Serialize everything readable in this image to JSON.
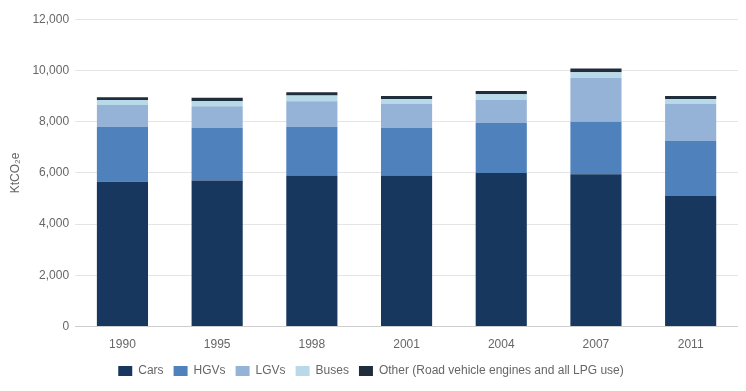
{
  "chart_data": {
    "type": "bar",
    "stacked": true,
    "ylabel": "KtCO₂e",
    "categories": [
      "1990",
      "1995",
      "1998",
      "2001",
      "2004",
      "2007",
      "2011"
    ],
    "series": [
      {
        "name": "Cars",
        "color": "#17375e",
        "values": [
          5650,
          5700,
          5900,
          5900,
          6000,
          5950,
          5100
        ]
      },
      {
        "name": "HGVs",
        "color": "#4f81bd",
        "values": [
          2150,
          2050,
          1900,
          1850,
          1950,
          2050,
          2150
        ]
      },
      {
        "name": "LGVs",
        "color": "#95b3d7",
        "values": [
          850,
          850,
          1000,
          950,
          900,
          1700,
          1450
        ]
      },
      {
        "name": "Buses",
        "color": "#b8d9e8",
        "values": [
          200,
          200,
          220,
          180,
          220,
          230,
          180
        ]
      },
      {
        "name": "Other (Road vehicle engines and all LPG use)",
        "color": "#1f2d3d",
        "values": [
          100,
          130,
          130,
          120,
          130,
          150,
          120
        ]
      }
    ],
    "ylim": [
      0,
      12000
    ],
    "yticks": [
      0,
      {
        "value": 2000,
        "label": "2,000"
      },
      {
        "value": 4000,
        "label": "4,000"
      },
      {
        "value": 6000,
        "label": "6,000"
      },
      {
        "value": 8000,
        "label": "8,000"
      },
      {
        "value": 10000,
        "label": "10,000"
      },
      {
        "value": 12000,
        "label": "12,000"
      }
    ],
    "grid": true,
    "legend": "bottom"
  }
}
